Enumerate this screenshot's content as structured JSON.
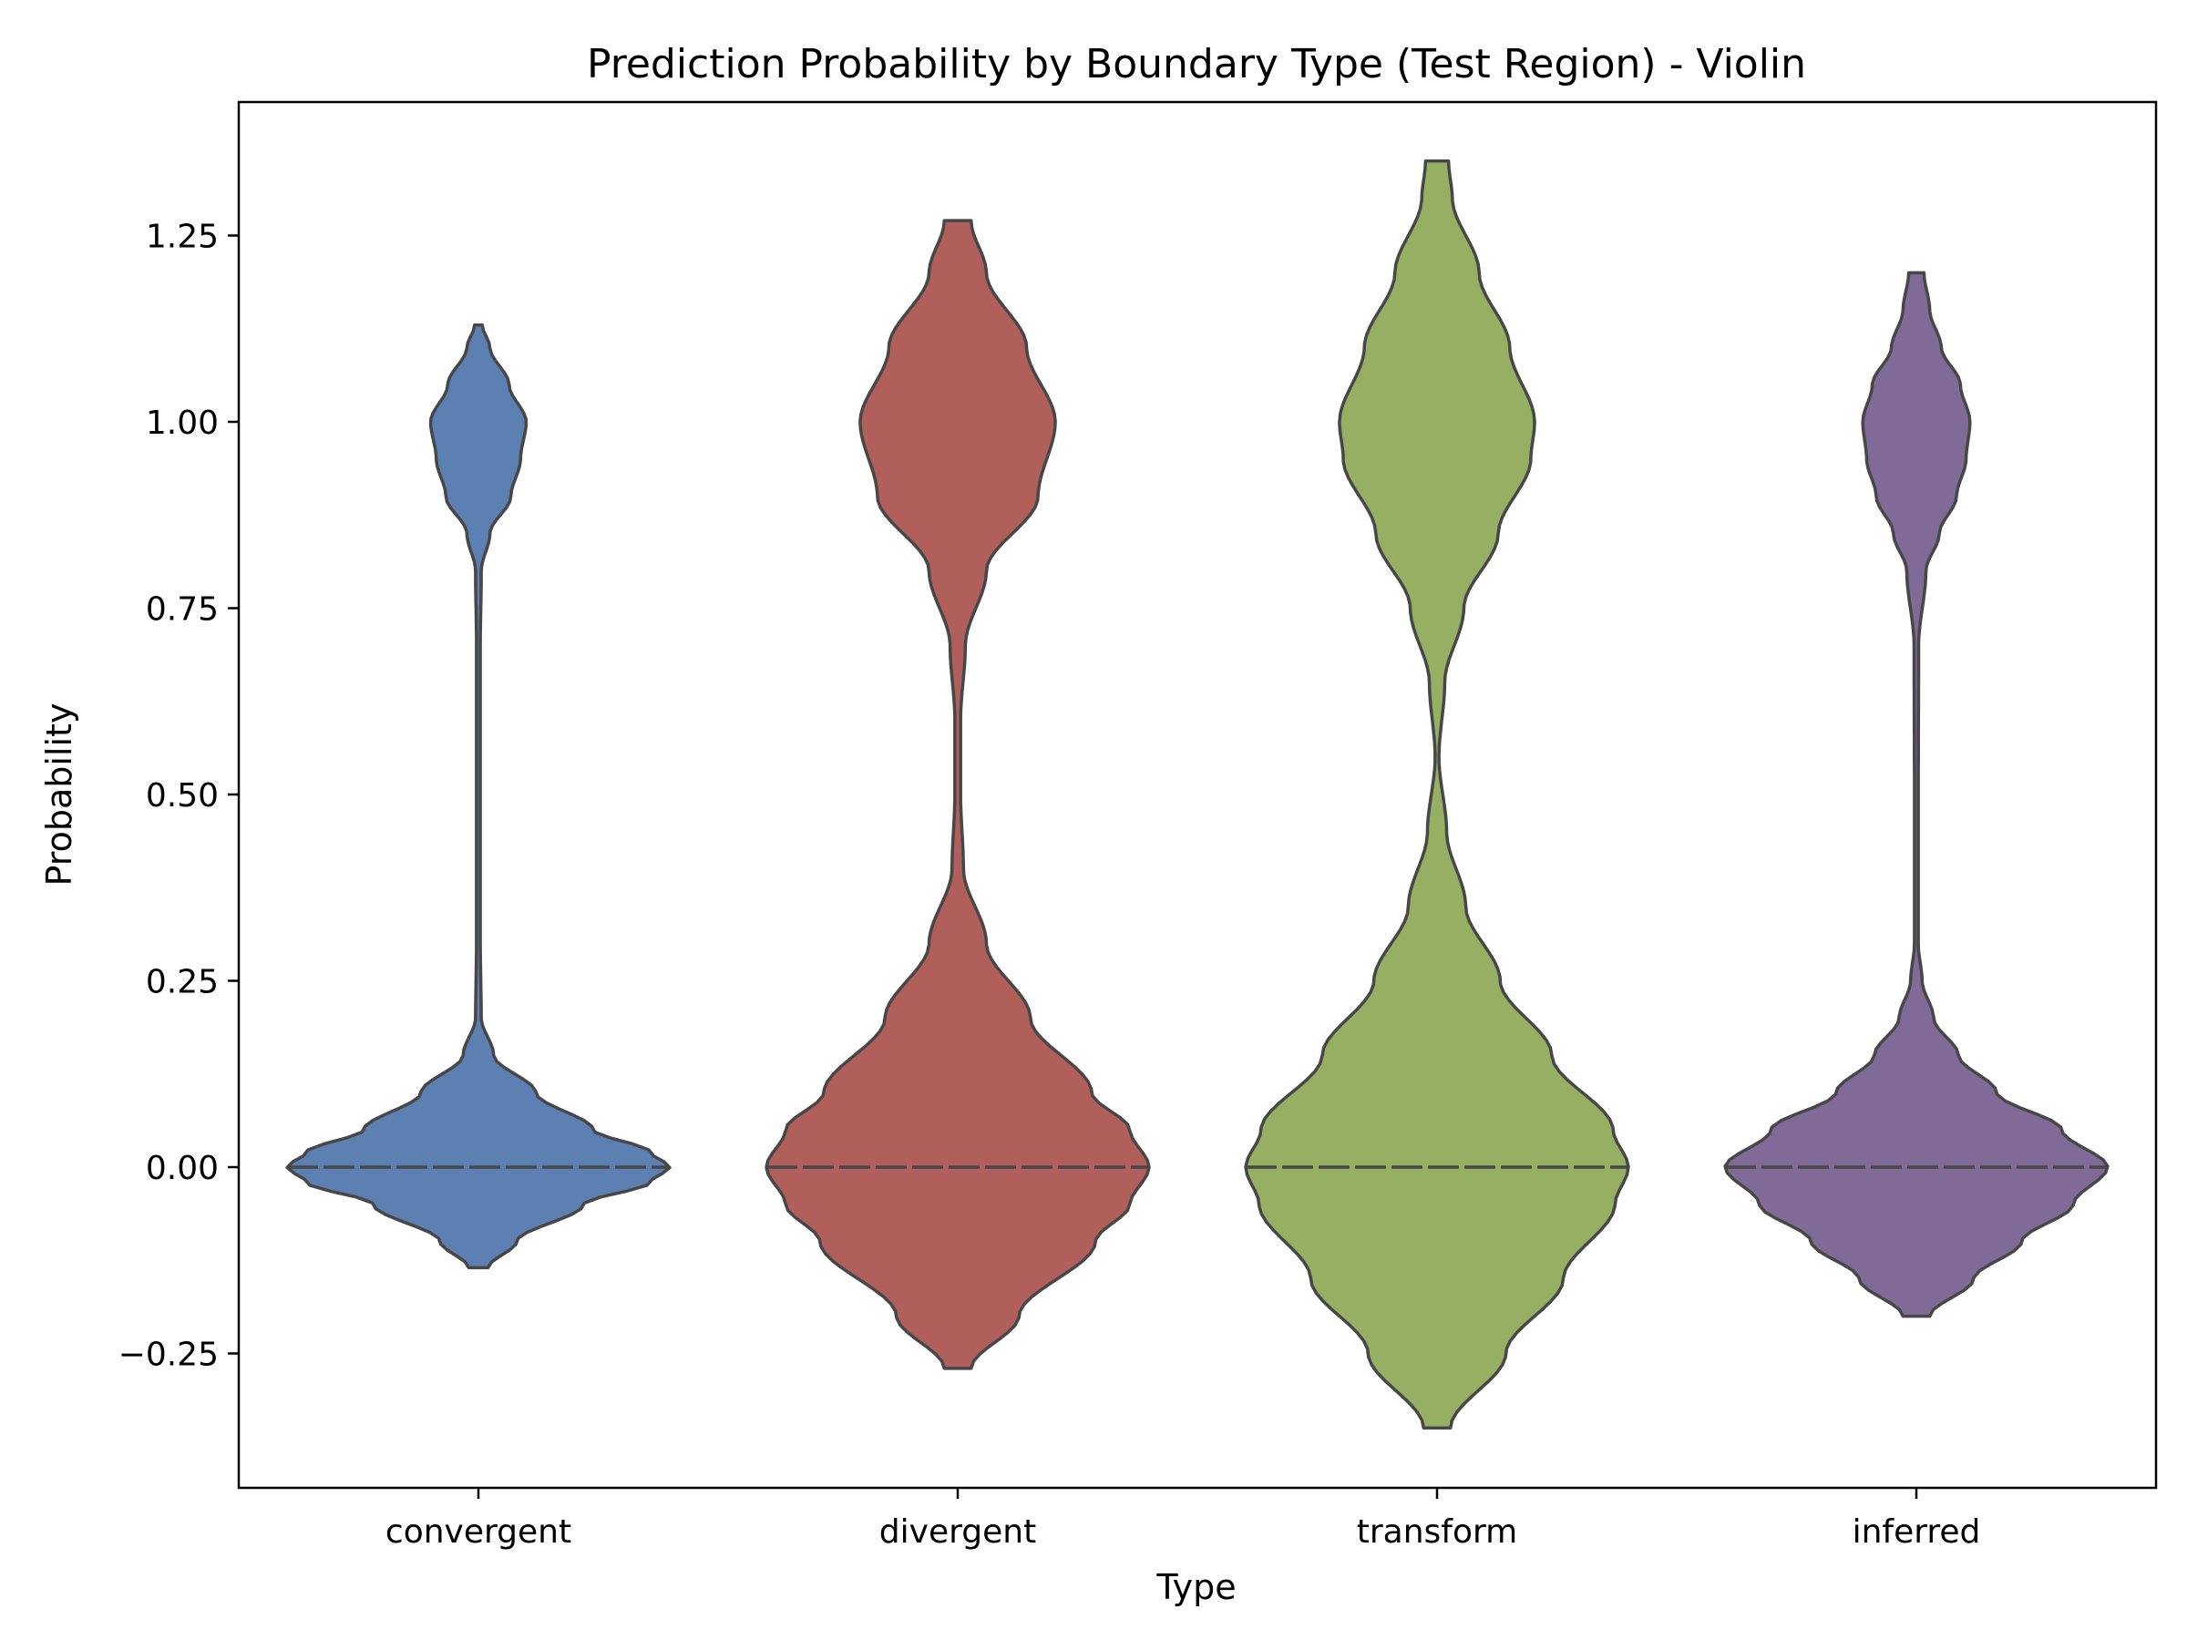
{
  "chart_data": {
    "type": "violin",
    "title": "Prediction Probability by Boundary Type (Test Region) - Violin",
    "xlabel": "Type",
    "ylabel": "Probability",
    "categories": [
      "convergent",
      "divergent",
      "transform",
      "inferred"
    ],
    "ylim": [
      -0.35,
      1.4
    ],
    "yticks": [
      -0.25,
      0.0,
      0.25,
      0.5,
      0.75,
      1.0,
      1.25
    ],
    "ytick_labels": [
      "−0.25",
      "0.00",
      "0.25",
      "0.50",
      "0.75",
      "1.00",
      "1.25"
    ],
    "grid": false,
    "inner": "quartile",
    "series": [
      {
        "category": "convergent",
        "color": "#5b80b1",
        "y_min": -0.135,
        "y_max": 1.13,
        "median": 0.0,
        "profile": [
          [
            -0.135,
            0.05
          ],
          [
            -0.1,
            0.2
          ],
          [
            -0.05,
            0.55
          ],
          [
            -0.02,
            0.9
          ],
          [
            0.0,
            1.0
          ],
          [
            0.02,
            0.9
          ],
          [
            0.05,
            0.6
          ],
          [
            0.1,
            0.3
          ],
          [
            0.15,
            0.08
          ],
          [
            0.2,
            0.015
          ],
          [
            0.3,
            0.01
          ],
          [
            0.5,
            0.01
          ],
          [
            0.7,
            0.01
          ],
          [
            0.8,
            0.015
          ],
          [
            0.85,
            0.06
          ],
          [
            0.9,
            0.17
          ],
          [
            0.95,
            0.22
          ],
          [
            1.0,
            0.25
          ],
          [
            1.05,
            0.16
          ],
          [
            1.1,
            0.06
          ],
          [
            1.13,
            0.02
          ]
        ]
      },
      {
        "category": "divergent",
        "color": "#b05f5b",
        "y_min": -0.27,
        "y_max": 1.27,
        "median": 0.0,
        "profile": [
          [
            -0.27,
            0.07
          ],
          [
            -0.2,
            0.32
          ],
          [
            -0.1,
            0.72
          ],
          [
            -0.05,
            0.9
          ],
          [
            0.0,
            1.0
          ],
          [
            0.05,
            0.9
          ],
          [
            0.1,
            0.7
          ],
          [
            0.2,
            0.38
          ],
          [
            0.3,
            0.15
          ],
          [
            0.4,
            0.03
          ],
          [
            0.5,
            0.015
          ],
          [
            0.6,
            0.015
          ],
          [
            0.7,
            0.04
          ],
          [
            0.8,
            0.15
          ],
          [
            0.9,
            0.42
          ],
          [
            1.0,
            0.51
          ],
          [
            1.1,
            0.36
          ],
          [
            1.2,
            0.15
          ],
          [
            1.27,
            0.07
          ]
        ]
      },
      {
        "category": "transform",
        "color": "#97af63",
        "y_min": -0.35,
        "y_max": 1.35,
        "median": 0.0,
        "profile": [
          [
            -0.35,
            0.07
          ],
          [
            -0.25,
            0.36
          ],
          [
            -0.15,
            0.66
          ],
          [
            -0.05,
            0.93
          ],
          [
            0.0,
            1.0
          ],
          [
            0.05,
            0.92
          ],
          [
            0.15,
            0.6
          ],
          [
            0.25,
            0.33
          ],
          [
            0.35,
            0.15
          ],
          [
            0.45,
            0.05
          ],
          [
            0.55,
            0.01
          ],
          [
            0.65,
            0.04
          ],
          [
            0.75,
            0.14
          ],
          [
            0.85,
            0.32
          ],
          [
            0.95,
            0.49
          ],
          [
            1.0,
            0.51
          ],
          [
            1.1,
            0.38
          ],
          [
            1.2,
            0.22
          ],
          [
            1.3,
            0.08
          ],
          [
            1.35,
            0.06
          ]
        ]
      },
      {
        "category": "inferred",
        "color": "#806b98",
        "y_min": -0.2,
        "y_max": 1.2,
        "median": 0.0,
        "profile": [
          [
            -0.2,
            0.07
          ],
          [
            -0.15,
            0.3
          ],
          [
            -0.1,
            0.55
          ],
          [
            -0.05,
            0.82
          ],
          [
            0.0,
            1.0
          ],
          [
            0.05,
            0.76
          ],
          [
            0.1,
            0.42
          ],
          [
            0.15,
            0.22
          ],
          [
            0.2,
            0.09
          ],
          [
            0.25,
            0.03
          ],
          [
            0.3,
            0.01
          ],
          [
            0.5,
            0.01
          ],
          [
            0.7,
            0.012
          ],
          [
            0.8,
            0.05
          ],
          [
            0.85,
            0.12
          ],
          [
            0.9,
            0.21
          ],
          [
            0.95,
            0.26
          ],
          [
            1.0,
            0.28
          ],
          [
            1.05,
            0.23
          ],
          [
            1.1,
            0.13
          ],
          [
            1.15,
            0.07
          ],
          [
            1.2,
            0.04
          ]
        ]
      }
    ]
  },
  "colors": {
    "outline": "#474747",
    "axes": "#000000"
  }
}
